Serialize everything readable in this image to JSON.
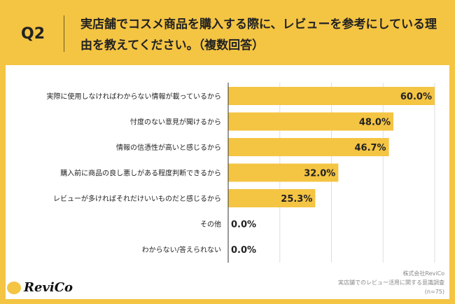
{
  "header": {
    "q": "Q2",
    "title": "実店舗でコスメ商品を購入する際に、レビューを参考にしている理由を教えてください。（複数回答）"
  },
  "footer": {
    "company": "株式会社ReviCo",
    "survey": "実店舗でのレビュー活用に関する意識調査",
    "n": "(n=75)"
  },
  "logo": {
    "text": "ReviCo"
  },
  "colors": {
    "background": "#F4C443",
    "bar": "#F4C443"
  },
  "chart_data": {
    "type": "bar",
    "orientation": "horizontal",
    "categories": [
      "実際に使用しなければわからない情報が載っているから",
      "忖度のない意見が聞けるから",
      "情報の信憑性が高いと感じるから",
      "購入前に商品の良し悪しがある程度判断できるから",
      "レビューが多ければそれだけいいものだと感じるから",
      "その他",
      "わからない/答えられない"
    ],
    "values": [
      60.0,
      48.0,
      46.7,
      32.0,
      25.3,
      0.0,
      0.0
    ],
    "labels": [
      "60.0%",
      "48.0%",
      "46.7%",
      "32.0%",
      "25.3%",
      "0.0%",
      "0.0%"
    ],
    "xlim": [
      0,
      60
    ],
    "grid": true
  }
}
